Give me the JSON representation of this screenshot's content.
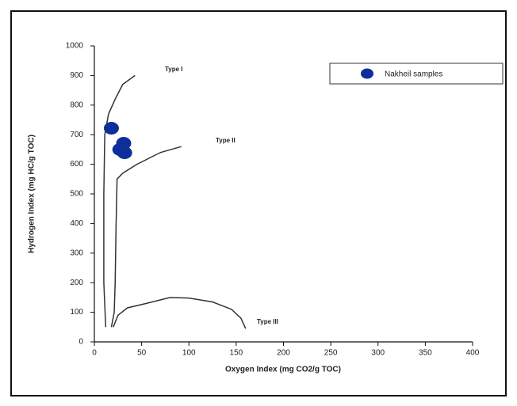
{
  "chart_data": {
    "type": "scatter",
    "x_label": "Oxygen Index (mg CO2/g TOC)",
    "y_label": "Hydrogen Index (mg HC/g TOC)",
    "xlim": [
      0,
      400
    ],
    "xticks": [
      0,
      50,
      100,
      150,
      200,
      250,
      300,
      350,
      400
    ],
    "ylim": [
      0,
      1000
    ],
    "yticks": [
      0,
      100,
      200,
      300,
      400,
      500,
      600,
      700,
      800,
      900,
      1000
    ],
    "grid": false,
    "legend": "upper right",
    "series": [
      {
        "name": "Nakheil samples",
        "color": "#0d2f9a",
        "x": [
          18,
          31,
          27,
          32
        ],
        "y": [
          722,
          671,
          650,
          639
        ]
      }
    ],
    "lines": [
      {
        "name": "Type I",
        "color": "#333333",
        "x": [
          12,
          10,
          10,
          11,
          15,
          22,
          30,
          43
        ],
        "y": [
          50,
          200,
          500,
          700,
          770,
          820,
          870,
          900
        ]
      },
      {
        "name": "Type II",
        "color": "#333333",
        "x": [
          18,
          21,
          22,
          23,
          24,
          30,
          45,
          70,
          92
        ],
        "y": [
          50,
          100,
          200,
          400,
          550,
          570,
          600,
          640,
          660
        ]
      },
      {
        "name": "Type III",
        "color": "#333333",
        "x": [
          20,
          25,
          35,
          55,
          80,
          100,
          125,
          145,
          155,
          160
        ],
        "y": [
          50,
          90,
          115,
          130,
          150,
          148,
          135,
          110,
          80,
          45
        ]
      }
    ]
  }
}
